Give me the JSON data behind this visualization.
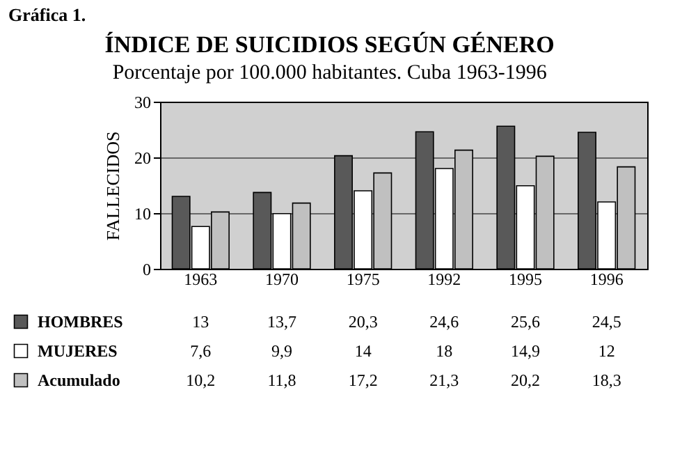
{
  "chart_data": {
    "type": "bar",
    "title": "ÍNDICE DE SUICIDIOS SEGÚN GÉNERO",
    "subtitle": "Porcentaje por 100.000 habitantes. Cuba 1963-1996",
    "ylabel": "FALLECIDOS",
    "annotations": [
      "Gráfica 1."
    ],
    "categories": [
      "1963",
      "1970",
      "1975",
      "1992",
      "1995",
      "1996"
    ],
    "series": [
      {
        "name": "HOMBRES",
        "color": "#595959",
        "values": [
          13,
          13.7,
          20.3,
          24.6,
          25.6,
          24.5
        ],
        "value_labels": [
          "13",
          "13,7",
          "20,3",
          "24,6",
          "25,6",
          "24,5"
        ]
      },
      {
        "name": "MUJERES",
        "color": "#ffffff",
        "values": [
          7.6,
          9.9,
          14,
          18,
          14.9,
          12
        ],
        "value_labels": [
          "7,6",
          "9,9",
          "14",
          "18",
          "14,9",
          "12"
        ]
      },
      {
        "name": "Acumulado",
        "color": "#c0c0c0",
        "values": [
          10.2,
          11.8,
          17.2,
          21.3,
          20.2,
          18.3
        ],
        "value_labels": [
          "10,2",
          "11,8",
          "17,2",
          "21,3",
          "20,2",
          "18,3"
        ]
      }
    ],
    "ylim": [
      0,
      30
    ],
    "yticks": [
      0,
      10,
      20,
      30
    ],
    "grid": "y",
    "legend": "bottom"
  }
}
